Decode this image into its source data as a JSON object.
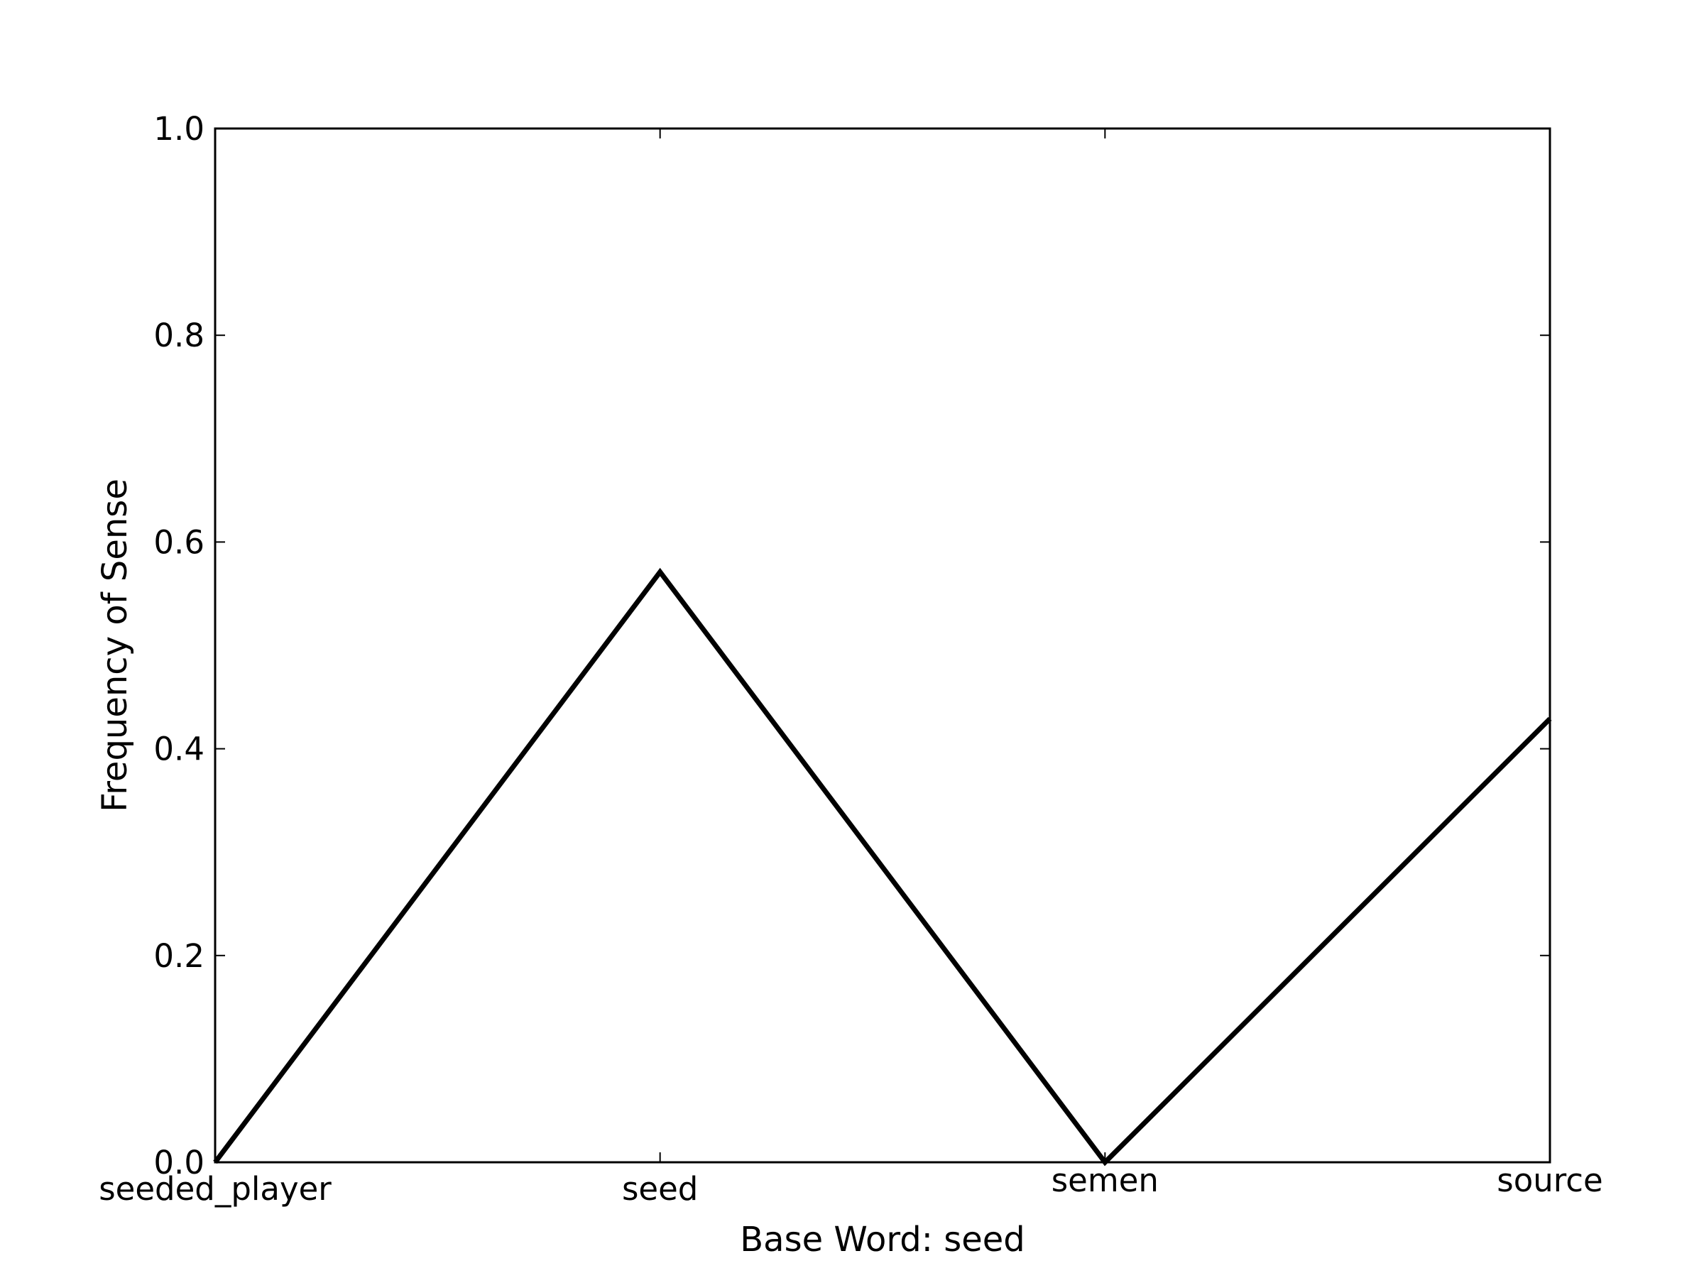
{
  "chart_data": {
    "type": "line",
    "title": "",
    "xlabel": "Base Word: seed",
    "ylabel": "Frequency of Sense",
    "categories": [
      "seeded_player",
      "seed",
      "semen",
      "source"
    ],
    "series": [
      {
        "values": [
          0.0,
          0.571,
          0.0,
          0.429
        ]
      }
    ],
    "ylim": [
      0,
      1.0
    ],
    "yticks": [
      "0.0",
      "0.2",
      "0.4",
      "0.6",
      "0.8",
      "1.0"
    ],
    "grid": false,
    "line_color": "#000000"
  }
}
